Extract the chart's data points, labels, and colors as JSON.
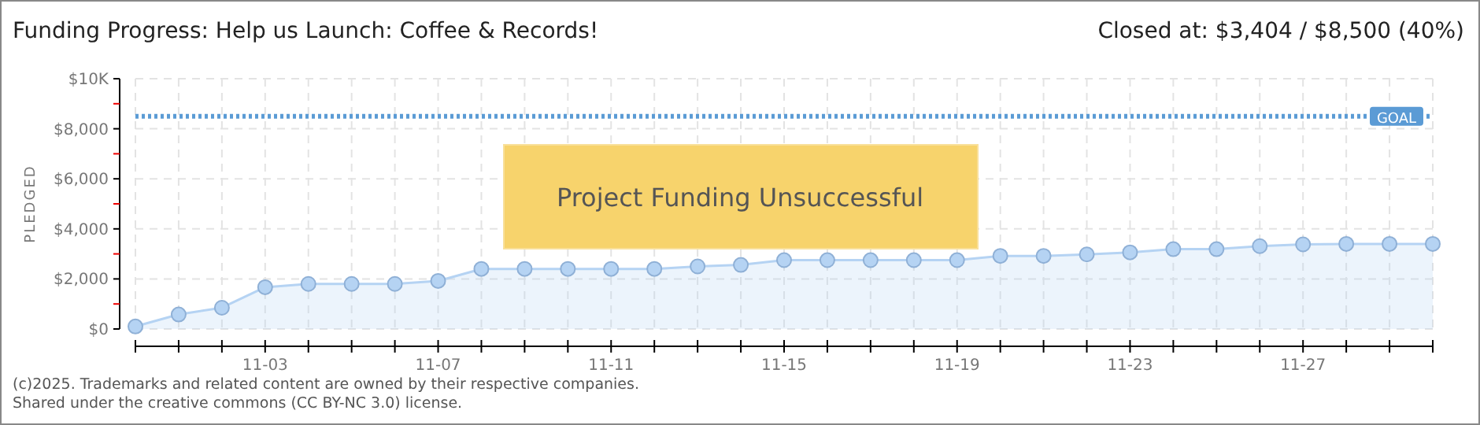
{
  "chart_data": {
    "type": "area",
    "title": "Funding Progress: Help us Launch: Coffee & Records!",
    "ylabel": "PLEDGED",
    "categories": [
      null,
      null,
      null,
      "11-03",
      null,
      null,
      null,
      "11-07",
      null,
      null,
      null,
      "11-11",
      null,
      null,
      null,
      "11-15",
      null,
      null,
      null,
      "11-19",
      null,
      null,
      null,
      "11-23",
      null,
      null,
      null,
      "11-27",
      null,
      null,
      null
    ],
    "series": [
      {
        "color": "#b5d3f3",
        "values": [
          100,
          580,
          850,
          1670,
          1800,
          1800,
          1800,
          1920,
          2400,
          2400,
          2400,
          2400,
          2400,
          2500,
          2560,
          2750,
          2750,
          2750,
          2750,
          2750,
          2920,
          2920,
          2980,
          3060,
          3190,
          3190,
          3310,
          3380,
          3400,
          3400,
          3400
        ]
      }
    ],
    "ylim": [
      0,
      10000
    ],
    "yticks": [
      {
        "value": 0,
        "label": "$0"
      },
      {
        "value": 1000,
        "label": null
      },
      {
        "value": 2000,
        "label": "$2,000"
      },
      {
        "value": 3000,
        "label": null
      },
      {
        "value": 4000,
        "label": "$4,000"
      },
      {
        "value": 5000,
        "label": null
      },
      {
        "value": 6000,
        "label": "$6,000"
      },
      {
        "value": 7000,
        "label": null
      },
      {
        "value": 8000,
        "label": "$8,000"
      },
      {
        "value": 9000,
        "label": null
      },
      {
        "value": 10000,
        "label": "$10K"
      }
    ],
    "ref_lines": [
      {
        "axis": "y",
        "value": 8500,
        "label": "GOAL",
        "color": "#5b9bd5",
        "line_style": "dotted"
      }
    ],
    "grid": true,
    "marker": "circle",
    "annotations": [
      "Closed at: $3,404 / $8,500 (40%)",
      "Project Funding Unsuccessful",
      "(c)2025. Trademarks and related content are owned by their respective companies.",
      "Shared under the creative commons (CC BY-NC 3.0) license."
    ]
  }
}
